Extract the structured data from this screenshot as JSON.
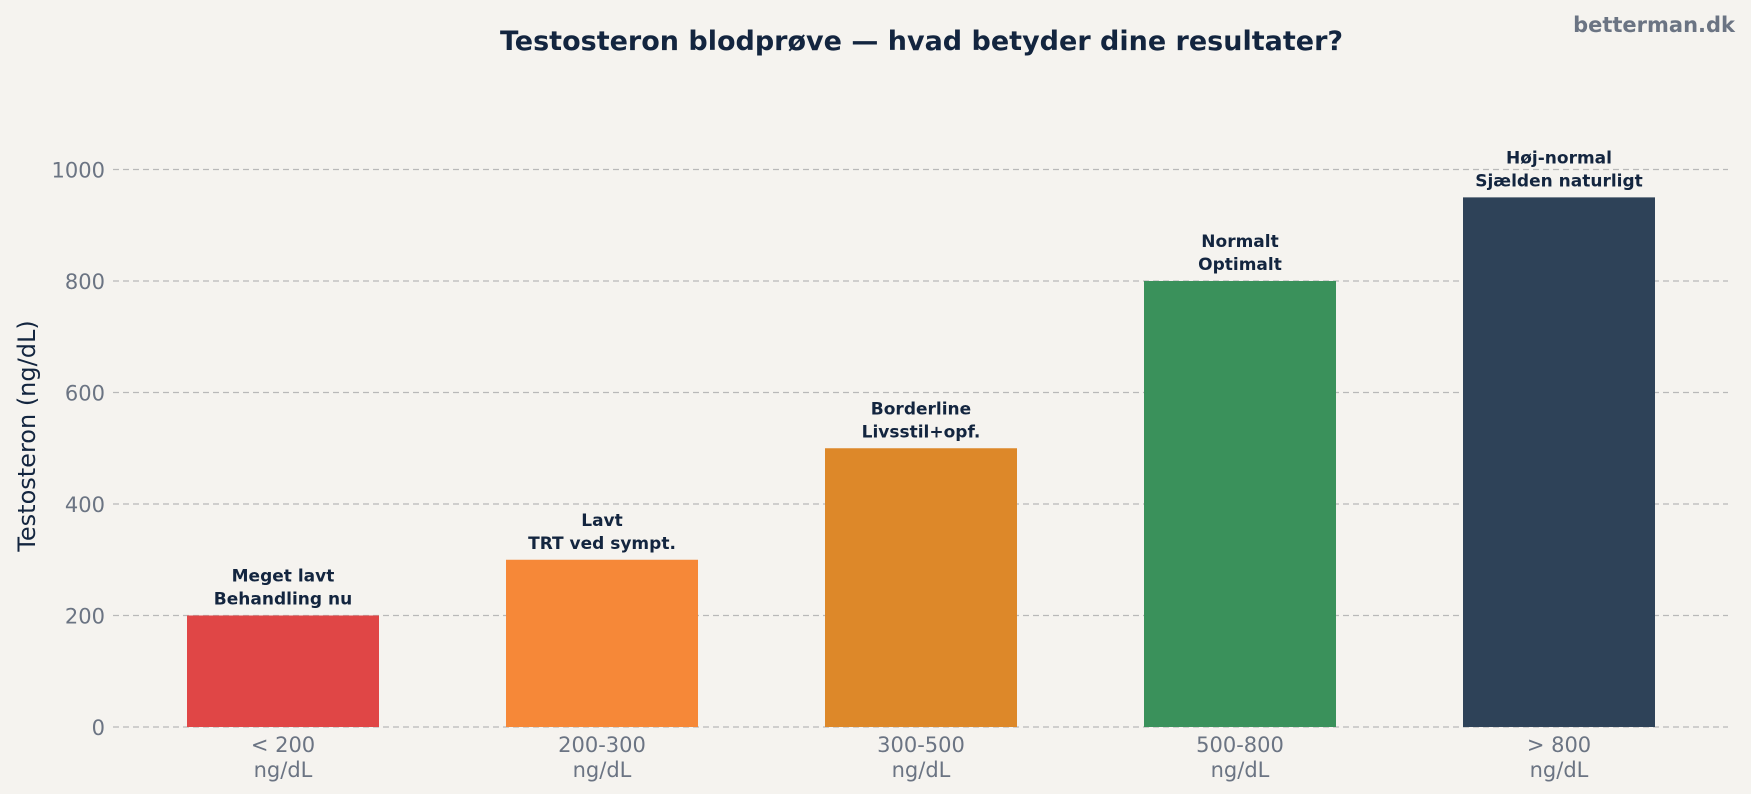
{
  "watermark": "betterman.dk",
  "chart_data": {
    "type": "bar",
    "title": "Testosteron blodprøve — hvad betyder dine resultater?",
    "xlabel": "",
    "ylabel": "Testosteron (ng/dL)",
    "ylim": [
      0,
      1100
    ],
    "yticks": [
      0,
      200,
      400,
      600,
      800,
      1000
    ],
    "grid": "horizontal dashed",
    "categories": [
      [
        "< 200",
        "ng/dL"
      ],
      [
        "200-300",
        "ng/dL"
      ],
      [
        "300-500",
        "ng/dL"
      ],
      [
        "500-800",
        "ng/dL"
      ],
      [
        "> 800",
        "ng/dL"
      ]
    ],
    "values": [
      200,
      300,
      500,
      800,
      950
    ],
    "bar_labels": [
      [
        "Meget lavt",
        "Behandling nu"
      ],
      [
        "Lavt",
        "TRT ved sympt."
      ],
      [
        "Borderline",
        "Livsstil+opf."
      ],
      [
        "Normalt",
        "Optimalt"
      ],
      [
        "Høj-normal",
        "Sjælden naturligt"
      ]
    ],
    "colors": [
      "#e04646",
      "#f68838",
      "#dd8829",
      "#3a915b",
      "#2e4258"
    ]
  }
}
